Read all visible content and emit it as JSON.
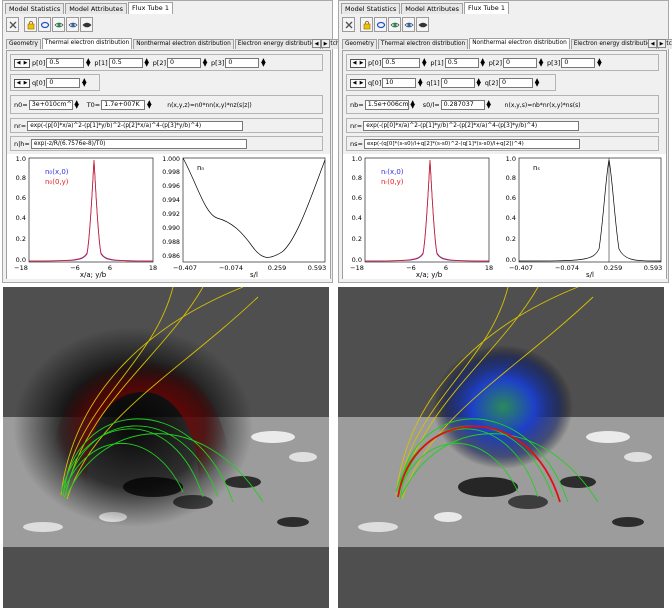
{
  "tabs_top": [
    "Model Statistics",
    "Model Attributes",
    "Flux Tube 1"
  ],
  "left": {
    "tabs": [
      "Geometry",
      "Thermal electron distribution",
      "Nonthermal electron distribution",
      "Electron energy distribution",
      "Pitch"
    ],
    "active_tab": 1,
    "p": [
      {
        "label": "p[0]",
        "value": "0.5"
      },
      {
        "label": "p[1]",
        "value": "0.5"
      },
      {
        "label": "p[2]",
        "value": "0"
      },
      {
        "label": "p[3]",
        "value": "0"
      }
    ],
    "q": [
      {
        "label": "q[0]",
        "value": "0"
      }
    ],
    "n_label": "n0=",
    "n_value": "3e+010cm^-3",
    "t_label": "T0=",
    "t_value": "1.7e+007K",
    "rel": "n(x,y,z)=n0*nn(x,y)*nz(s|z|)",
    "f1_label": "nr=",
    "f1": "exp(-(p[0]*x/a)^2-(p[1]*y/b)^2-(p[2]*x/a)^4-(p[3]*y/b)^4)",
    "f2_label": "n|h=",
    "f2": "exp(-z/R/(6.7576e-8)/T0)",
    "plot1": {
      "legend": [
        "n₀(x,0)",
        "n₀(0,y)"
      ],
      "xlabel": "x/a; y/b",
      "xticks": [
        "−18",
        "−6",
        "6",
        "18"
      ],
      "yticks": [
        "0.0",
        "0.2",
        "0.4",
        "0.6",
        "0.8",
        "1.0"
      ]
    },
    "plot2": {
      "label": "nₙ",
      "xlabel": "s/l",
      "xticks": [
        "−0.407",
        "−0.074",
        "0.259",
        "0.593"
      ],
      "yticks": [
        "0.986",
        "0.988",
        "0.990",
        "0.992",
        "0.994",
        "0.996",
        "0.998",
        "1.000"
      ]
    }
  },
  "right": {
    "tabs": [
      "Geometry",
      "Thermal electron distribution",
      "Nonthermal electron distribution",
      "Electron energy distribution",
      "Pitch"
    ],
    "active_tab": 2,
    "p": [
      {
        "label": "p[0]",
        "value": "0.5"
      },
      {
        "label": "p[1]",
        "value": "0.5"
      },
      {
        "label": "p[2]",
        "value": "0"
      },
      {
        "label": "p[3]",
        "value": "0"
      }
    ],
    "q": [
      {
        "label": "q[0]",
        "value": "10"
      },
      {
        "label": "q[1]",
        "value": "0"
      },
      {
        "label": "q[2]",
        "value": "0"
      }
    ],
    "n_label": "nb=",
    "n_value": "1.5e+006cm^-3",
    "t_label": "s0/l=",
    "t_value": "0.287037",
    "rel": "n(x,y,s)=nb*nr(x,y)*ns(s)",
    "f1_label": "nr=",
    "f1": "exp(-(p[0]*x/a)^2-(p[1]*y/b)^2-(p[2]*x/a)^4-(p[3]*y/b)^4)",
    "f2_label": "ns=",
    "f2": "exp(-(q[0]*(s-s0)/l+q[2]*(s-s0)^2-(q[1]*(s-s0)/l+q[2])^4)",
    "plot1": {
      "legend": [
        "nᵣ(x,0)",
        "nᵣ(0,y)"
      ],
      "xlabel": "x/a; y/b",
      "xticks": [
        "−18",
        "−6",
        "6",
        "18"
      ],
      "yticks": [
        "0.0",
        "0.2",
        "0.4",
        "0.6",
        "0.8",
        "1.0"
      ]
    },
    "plot2": {
      "label": "nₛ",
      "xlabel": "s/l",
      "xticks": [
        "−0.407",
        "−0.074",
        "0.259",
        "0.593"
      ],
      "yticks": [
        "0.0",
        "0.2",
        "0.4",
        "0.6",
        "0.8",
        "1.0"
      ]
    }
  }
}
